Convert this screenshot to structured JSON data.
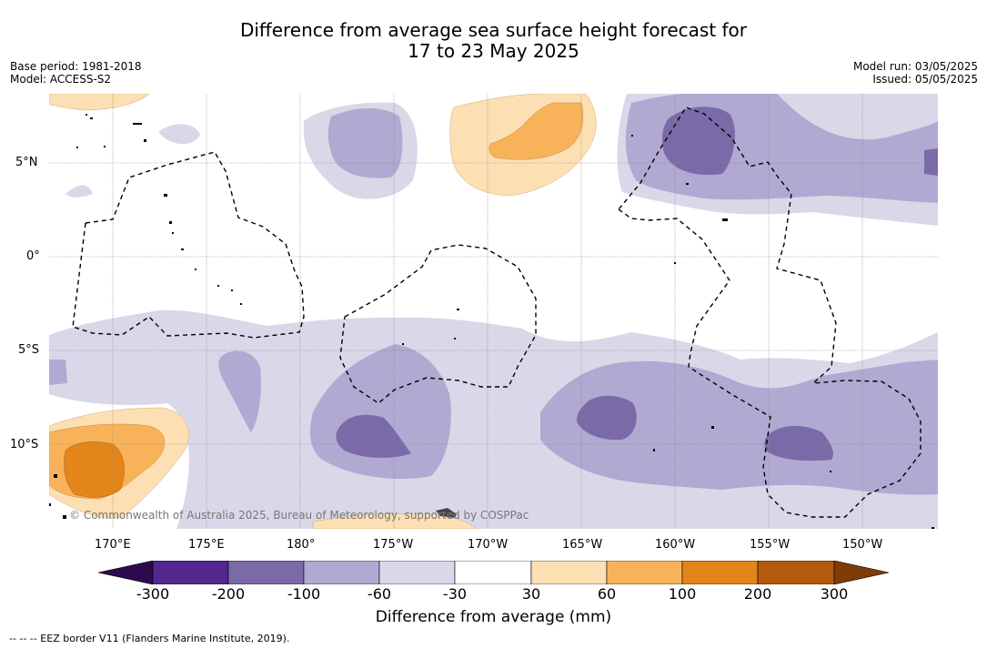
{
  "header": {
    "title_line1": "Difference from average sea surface height forecast for",
    "title_line2": "17 to 23 May 2025",
    "base_period": "Base period: 1981-2018",
    "model": "Model: ACCESS-S2",
    "model_run": "Model run: 03/05/2025",
    "issued": "Issued: 05/05/2025"
  },
  "map": {
    "lat_labels": [
      "5°N",
      "0°",
      "5°S",
      "10°S"
    ],
    "lon_labels": [
      "170°E",
      "175°E",
      "180°",
      "175°W",
      "170°W",
      "165°W",
      "160°W",
      "155°W",
      "150°W"
    ],
    "copyright": "© Commonwealth of Australia 2025, Bureau of Meteorology, supported by COSPPac"
  },
  "colorbar": {
    "ticks": [
      "-300",
      "-200",
      "-100",
      "-60",
      "-30",
      "30",
      "60",
      "100",
      "200",
      "300"
    ],
    "title": "Difference from average (mm)",
    "colors": {
      "below": "#2d0a4e",
      "neg300": "#54278f",
      "neg200": "#7b6aa8",
      "neg100": "#b0a9d1",
      "neg60": "#d8d8e9",
      "neutral": "#ffffff",
      "pos30": "#fddfb4",
      "pos60": "#f8b35a",
      "pos100": "#e38519",
      "pos200": "#b35a0c",
      "above": "#7f3b08"
    }
  },
  "legend": {
    "eez": "--  --  -- EEZ border V11 (Flanders Marine Institute, 2019)."
  }
}
